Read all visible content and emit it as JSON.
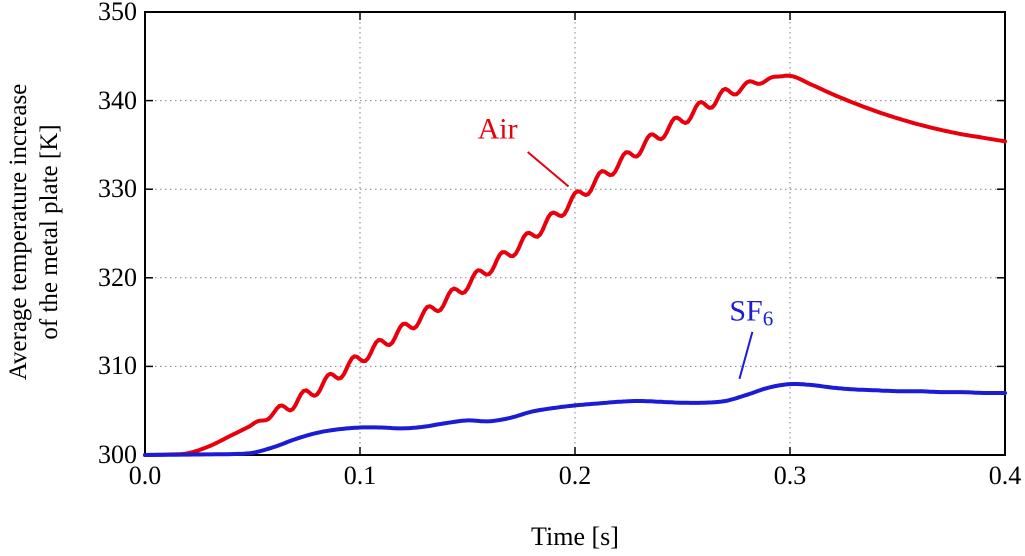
{
  "chart_data": {
    "type": "line",
    "title": "",
    "xlabel": "Time [s]",
    "ylabel_line1": "Average temperature increase",
    "ylabel_line2": "of the metal plate [K]",
    "xlim": [
      0.0,
      0.4
    ],
    "ylim": [
      300,
      350
    ],
    "xticks": [
      0.0,
      0.1,
      0.2,
      0.3,
      0.4
    ],
    "xtick_labels": [
      "0.0",
      "0.1",
      "0.2",
      "0.3",
      "0.4"
    ],
    "yticks": [
      300,
      310,
      320,
      330,
      340,
      350
    ],
    "ytick_labels": [
      "300",
      "310",
      "320",
      "330",
      "340",
      "350"
    ],
    "grid": "dotted",
    "legend_position": "none",
    "series": [
      {
        "name": "Air",
        "color": "#e8000d",
        "line_width": 4,
        "ripple": {
          "amplitude": 0.7,
          "period": 0.0115,
          "t_start": 0.048,
          "t_end": 0.298
        },
        "points": [
          [
            0,
            300
          ],
          [
            0.01,
            300.05
          ],
          [
            0.02,
            300.2
          ],
          [
            0.03,
            301.0
          ],
          [
            0.04,
            302.2
          ],
          [
            0.05,
            303.4
          ],
          [
            0.06,
            304.7
          ],
          [
            0.07,
            306.0
          ],
          [
            0.08,
            307.5
          ],
          [
            0.09,
            309.2
          ],
          [
            0.1,
            310.9
          ],
          [
            0.11,
            312.5
          ],
          [
            0.12,
            314.1
          ],
          [
            0.13,
            315.8
          ],
          [
            0.14,
            317.5
          ],
          [
            0.15,
            319.3
          ],
          [
            0.16,
            321.1
          ],
          [
            0.17,
            322.9
          ],
          [
            0.18,
            324.8
          ],
          [
            0.19,
            326.8
          ],
          [
            0.2,
            328.9
          ],
          [
            0.21,
            330.9
          ],
          [
            0.22,
            332.8
          ],
          [
            0.23,
            334.6
          ],
          [
            0.24,
            336.3
          ],
          [
            0.25,
            337.9
          ],
          [
            0.26,
            339.4
          ],
          [
            0.27,
            340.7
          ],
          [
            0.28,
            341.7
          ],
          [
            0.29,
            342.4
          ],
          [
            0.3,
            342.8
          ],
          [
            0.31,
            341.8
          ],
          [
            0.32,
            340.7
          ],
          [
            0.33,
            339.7
          ],
          [
            0.34,
            338.8
          ],
          [
            0.35,
            338.0
          ],
          [
            0.36,
            337.3
          ],
          [
            0.37,
            336.7
          ],
          [
            0.38,
            336.2
          ],
          [
            0.39,
            335.8
          ],
          [
            0.4,
            335.4
          ]
        ]
      },
      {
        "name": "SF6",
        "color": "#1c1cd6",
        "line_width": 4,
        "points": [
          [
            0,
            300
          ],
          [
            0.02,
            300.05
          ],
          [
            0.04,
            300.1
          ],
          [
            0.05,
            300.25
          ],
          [
            0.06,
            300.9
          ],
          [
            0.07,
            301.8
          ],
          [
            0.08,
            302.5
          ],
          [
            0.09,
            302.9
          ],
          [
            0.1,
            303.1
          ],
          [
            0.11,
            303.1
          ],
          [
            0.12,
            303.0
          ],
          [
            0.13,
            303.2
          ],
          [
            0.14,
            303.6
          ],
          [
            0.15,
            303.9
          ],
          [
            0.16,
            303.8
          ],
          [
            0.17,
            304.2
          ],
          [
            0.18,
            304.9
          ],
          [
            0.19,
            305.3
          ],
          [
            0.2,
            305.6
          ],
          [
            0.21,
            305.8
          ],
          [
            0.22,
            306.0
          ],
          [
            0.23,
            306.1
          ],
          [
            0.24,
            306.0
          ],
          [
            0.25,
            305.9
          ],
          [
            0.26,
            305.9
          ],
          [
            0.27,
            306.1
          ],
          [
            0.28,
            306.8
          ],
          [
            0.29,
            307.6
          ],
          [
            0.3,
            308.0
          ],
          [
            0.31,
            307.9
          ],
          [
            0.32,
            307.6
          ],
          [
            0.33,
            307.4
          ],
          [
            0.34,
            307.3
          ],
          [
            0.35,
            307.2
          ],
          [
            0.36,
            307.2
          ],
          [
            0.37,
            307.1
          ],
          [
            0.38,
            307.1
          ],
          [
            0.39,
            307.0
          ],
          [
            0.4,
            307.0
          ]
        ]
      }
    ],
    "annotations": [
      {
        "id": "air",
        "text": "Air",
        "sub": "",
        "color": "#e8000d",
        "x": 0.164,
        "y": 336.6,
        "line": [
          [
            0.178,
            334.2
          ],
          [
            0.197,
            330.3
          ]
        ]
      },
      {
        "id": "sf6",
        "text": "SF",
        "sub": "6",
        "color": "#1c1cd6",
        "x": 0.282,
        "y": 316.0,
        "line": [
          [
            0.2825,
            313.9
          ],
          [
            0.2765,
            308.6
          ]
        ]
      }
    ]
  }
}
